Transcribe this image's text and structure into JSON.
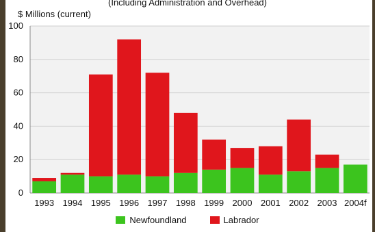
{
  "chart_data": {
    "type": "bar",
    "stacked": true,
    "subtitle": "(Including Administration and Overhead)",
    "ylabel": "$ Millions (current)",
    "xlabel": "",
    "ylim": [
      0,
      100
    ],
    "yticks": [
      0,
      20,
      40,
      60,
      80,
      100
    ],
    "grid": true,
    "legend_position": "bottom",
    "categories": [
      "1993",
      "1994",
      "1995",
      "1996",
      "1997",
      "1998",
      "1999",
      "2000",
      "2001",
      "2002",
      "2003",
      "2004f"
    ],
    "series": [
      {
        "name": "Newfoundland",
        "color": "#3cc41e",
        "values": [
          7,
          11,
          10,
          11,
          10,
          12,
          14,
          15,
          11,
          13,
          15,
          17
        ]
      },
      {
        "name": "Labrador",
        "color": "#e0161c",
        "values": [
          2,
          1,
          61,
          81,
          62,
          36,
          18,
          12,
          17,
          31,
          8,
          0
        ]
      }
    ]
  }
}
